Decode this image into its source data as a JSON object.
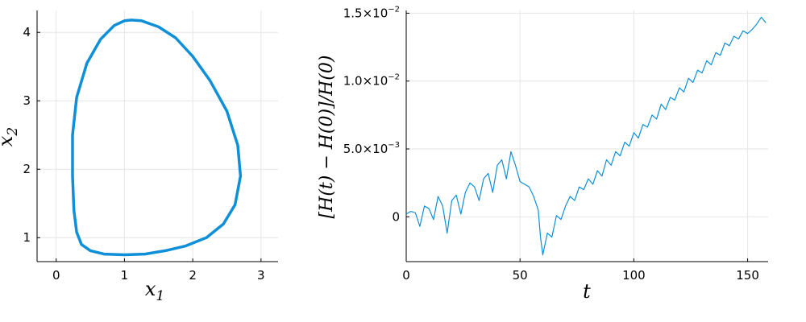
{
  "chart_data": [
    {
      "type": "line",
      "subtype": "phase-portrait",
      "xlabel": "x",
      "xlabel_sub": "1",
      "ylabel": "x",
      "ylabel_sub": "2",
      "xlim": [
        -0.28,
        3.25
      ],
      "ylim": [
        0.65,
        4.32
      ],
      "xticks": [
        0,
        1,
        2,
        3
      ],
      "xtick_labels": [
        "0",
        "1",
        "2",
        "3"
      ],
      "yticks": [
        1,
        2,
        3,
        4
      ],
      "ytick_labels": [
        "1",
        "2",
        "3",
        "4"
      ],
      "grid": true,
      "legend": "none",
      "color": "#0f8fd8",
      "series": [
        {
          "x": [
            1.0,
            1.3,
            1.6,
            1.9,
            2.2,
            2.45,
            2.62,
            2.7,
            2.66,
            2.5,
            2.25,
            2.0,
            1.75,
            1.5,
            1.25,
            1.1,
            1.0,
            0.85,
            0.65,
            0.45,
            0.3,
            0.24,
            0.24,
            0.26,
            0.3,
            0.37,
            0.5,
            0.7,
            1.0
          ],
          "y": [
            0.75,
            0.76,
            0.81,
            0.88,
            1.0,
            1.2,
            1.48,
            1.9,
            2.35,
            2.85,
            3.3,
            3.65,
            3.92,
            4.08,
            4.17,
            4.18,
            4.17,
            4.1,
            3.9,
            3.55,
            3.05,
            2.5,
            1.9,
            1.4,
            1.08,
            0.9,
            0.81,
            0.76,
            0.75
          ]
        }
      ]
    },
    {
      "type": "line",
      "xlabel": "t",
      "ylabel_parts": [
        "[H(t) − H(0)]",
        "/",
        "H(0)"
      ],
      "xlim": [
        0,
        159
      ],
      "ylim": [
        -0.0033,
        0.0152
      ],
      "xticks": [
        0,
        50,
        100,
        150
      ],
      "xtick_labels": [
        "0",
        "50",
        "100",
        "150"
      ],
      "yticks": [
        0,
        0.005,
        0.01,
        0.015
      ],
      "ytick_labels": [
        {
          "mantissa": "0",
          "exponent": ""
        },
        {
          "mantissa": "5.0×10",
          "exponent": "−3"
        },
        {
          "mantissa": "1.0×10",
          "exponent": "−2"
        },
        {
          "mantissa": "1.5×10",
          "exponent": "−2"
        }
      ],
      "grid": true,
      "legend": "none",
      "color": "#0f8fd8",
      "series": [
        {
          "x": [
            0,
            2,
            4,
            6,
            8,
            10,
            12,
            14,
            16,
            18,
            20,
            22,
            24,
            26,
            28,
            30,
            32,
            34,
            36,
            38,
            40,
            42,
            44,
            46,
            48,
            50,
            52,
            54,
            56,
            58,
            59,
            60,
            62,
            64,
            66,
            68,
            70,
            72,
            74,
            76,
            78,
            80,
            82,
            84,
            86,
            88,
            90,
            92,
            94,
            96,
            98,
            100,
            102,
            104,
            106,
            108,
            110,
            112,
            114,
            116,
            118,
            120,
            122,
            124,
            126,
            128,
            130,
            132,
            134,
            136,
            138,
            140,
            142,
            144,
            146,
            148,
            150,
            152,
            154,
            156,
            158
          ],
          "y": [
            0.0002,
            0.0004,
            0.0003,
            -0.0007,
            0.0008,
            0.0006,
            -0.0002,
            0.0015,
            0.0008,
            -0.0012,
            0.0012,
            0.0016,
            0.0002,
            0.0018,
            0.0025,
            0.0022,
            0.0012,
            0.0028,
            0.0032,
            0.0018,
            0.0038,
            0.0042,
            0.0028,
            0.0048,
            0.0038,
            0.0026,
            0.0024,
            0.0022,
            0.0015,
            0.0005,
            -0.0015,
            -0.0028,
            -0.0012,
            -0.0015,
            0.0001,
            -0.0002,
            0.0008,
            0.0015,
            0.0012,
            0.0022,
            0.002,
            0.0028,
            0.0024,
            0.0034,
            0.003,
            0.0042,
            0.0038,
            0.0048,
            0.0045,
            0.0055,
            0.0052,
            0.0062,
            0.0058,
            0.0068,
            0.0066,
            0.0075,
            0.0072,
            0.0083,
            0.0079,
            0.0088,
            0.0086,
            0.0095,
            0.0092,
            0.0102,
            0.0099,
            0.0108,
            0.0106,
            0.0115,
            0.0112,
            0.0121,
            0.0119,
            0.0128,
            0.0126,
            0.0133,
            0.0131,
            0.0137,
            0.0135,
            0.0138,
            0.0142,
            0.0147,
            0.0143
          ]
        }
      ]
    }
  ]
}
